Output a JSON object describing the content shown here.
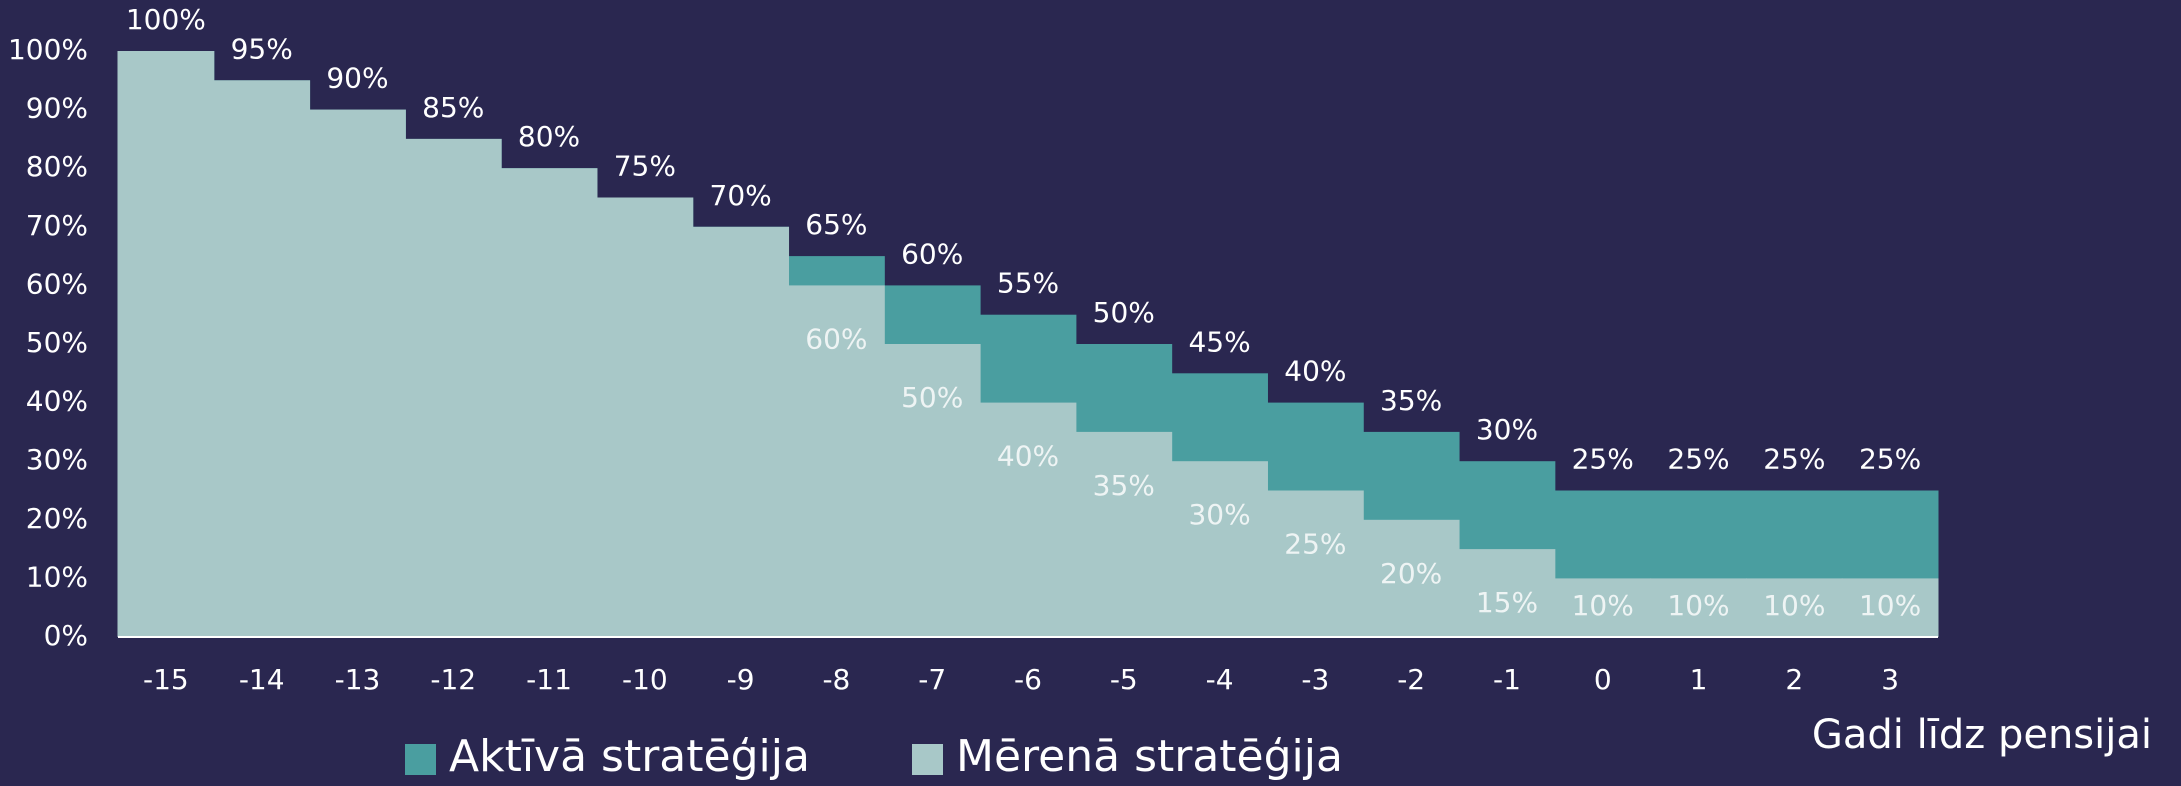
{
  "chart_data": {
    "type": "step-area",
    "x_label": "Gadi līdz pensijai",
    "categories": [
      "-15",
      "-14",
      "-13",
      "-12",
      "-11",
      "-10",
      "-9",
      "-8",
      "-7",
      "-6",
      "-5",
      "-4",
      "-3",
      "-2",
      "-1",
      "0",
      "1",
      "2",
      "3"
    ],
    "series": [
      {
        "name": "Aktīvā stratēģija",
        "color": "#4a9ea0",
        "values": [
          100,
          95,
          90,
          85,
          80,
          75,
          70,
          65,
          60,
          55,
          50,
          45,
          40,
          35,
          30,
          25,
          25,
          25,
          25
        ],
        "value_labels": [
          "100%",
          "95%",
          "90%",
          "85%",
          "80%",
          "75%",
          "70%",
          "65%",
          "60%",
          "55%",
          "50%",
          "45%",
          "40%",
          "35%",
          "30%",
          "25%",
          "25%",
          "25%",
          "25%"
        ]
      },
      {
        "name": "Mērenā stratēģija",
        "color": "#a8c8c8",
        "values": [
          100,
          95,
          90,
          85,
          80,
          75,
          70,
          60,
          50,
          40,
          35,
          30,
          25,
          20,
          15,
          10,
          10,
          10,
          10
        ],
        "value_labels": [
          null,
          null,
          null,
          null,
          null,
          null,
          null,
          "60%",
          "50%",
          "40%",
          "35%",
          "30%",
          "25%",
          "20%",
          "15%",
          "10%",
          "10%",
          "10%",
          "10%"
        ]
      }
    ],
    "ylim": [
      0,
      100
    ],
    "yticks": [
      {
        "value": 0,
        "label": "0%"
      },
      {
        "value": 10,
        "label": "10%"
      },
      {
        "value": 20,
        "label": "20%"
      },
      {
        "value": 30,
        "label": "30%"
      },
      {
        "value": 40,
        "label": "40%"
      },
      {
        "value": 50,
        "label": "50%"
      },
      {
        "value": 60,
        "label": "60%"
      },
      {
        "value": 70,
        "label": "70%"
      },
      {
        "value": 80,
        "label": "80%"
      },
      {
        "value": 90,
        "label": "90%"
      },
      {
        "value": 100,
        "label": "100%"
      }
    ]
  }
}
